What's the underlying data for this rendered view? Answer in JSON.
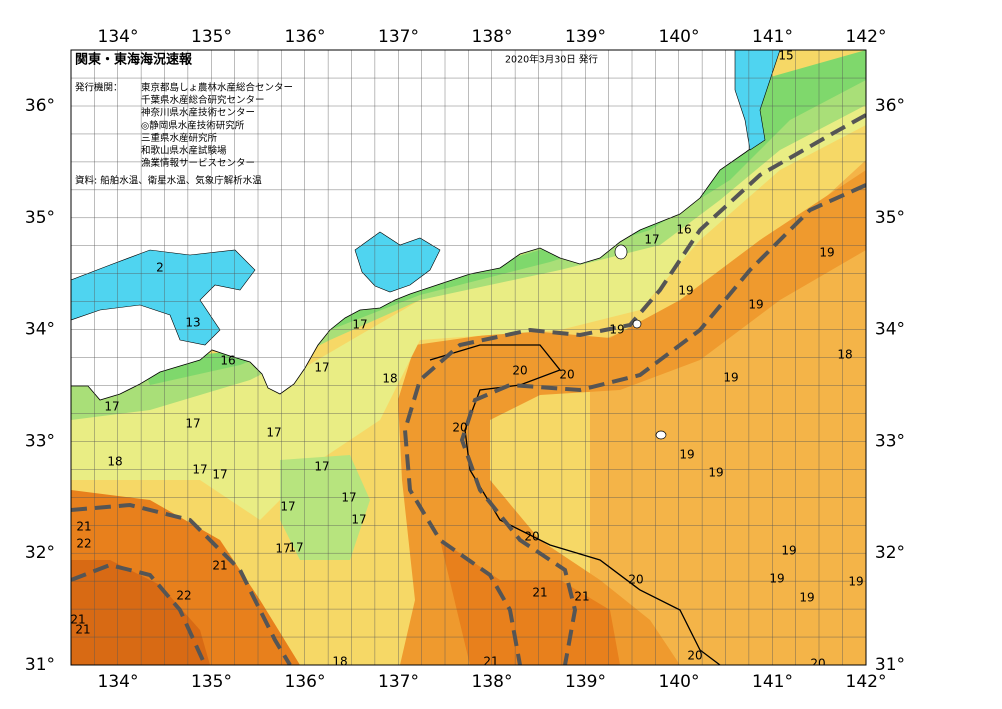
{
  "header": {
    "title": "関東・東海海況速報",
    "date": "2020年3月30日 発行",
    "publisher_label": "発行機関：",
    "publishers": [
      "東京都島しょ農林水産総合センター",
      "千葉県水産総合研究センター",
      "神奈川県水産技術センター",
      "◎静岡県水産技術研究所",
      "三重県水産研究所",
      "和歌山県水産試験場",
      "漁業情報サービスセンター"
    ],
    "sources": "資料: 船舶水温、衛星水温、気象庁解析水温"
  },
  "axes": {
    "longitudes": [
      "134°",
      "135°",
      "136°",
      "137°",
      "138°",
      "139°",
      "140°",
      "141°",
      "142°"
    ],
    "latitudes": [
      "36°",
      "35°",
      "34°",
      "33°",
      "32°",
      "31°"
    ]
  },
  "contour_labels": [
    "15",
    "2",
    "13",
    "16",
    "17",
    "17",
    "18",
    "17",
    "17",
    "17",
    "18",
    "17",
    "17",
    "17",
    "17",
    "17",
    "17",
    "17",
    "17",
    "21",
    "22",
    "21",
    "22",
    "21",
    "21",
    "18",
    "17",
    "16",
    "19",
    "19",
    "19",
    "19",
    "18",
    "19",
    "20",
    "20",
    "20",
    "19",
    "19",
    "20",
    "19",
    "19",
    "19",
    "19",
    "20",
    "21",
    "21",
    "21",
    "20",
    "20"
  ]
}
